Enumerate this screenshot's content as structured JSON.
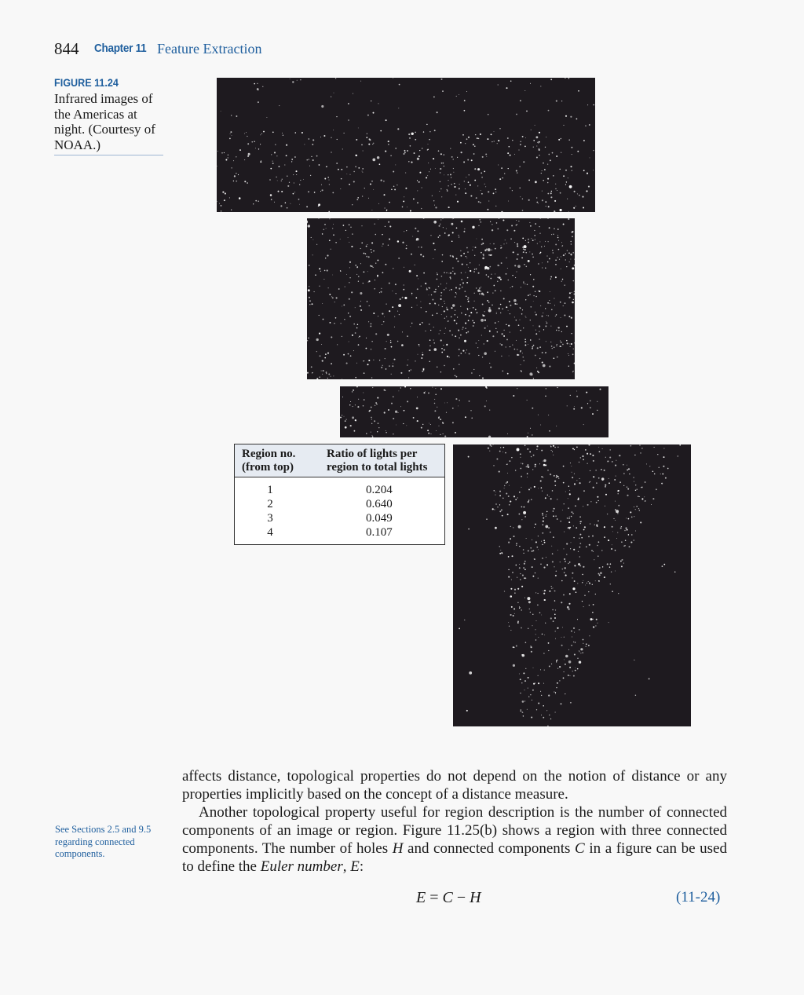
{
  "header": {
    "page_number": "844",
    "chapter_label": "Chapter 11",
    "chapter_title": "Feature Extraction"
  },
  "figure": {
    "label": "FIGURE 11.24",
    "caption": "Infrared images of the Americas at night. (Courtesy of NOAA.)"
  },
  "table": {
    "headers": {
      "region_line1": "Region no.",
      "region_line2": "(from top)",
      "ratio_line1": "Ratio of lights per",
      "ratio_line2": "region to total lights"
    },
    "rows": [
      {
        "region": "1",
        "ratio": "0.204"
      },
      {
        "region": "2",
        "ratio": "0.640"
      },
      {
        "region": "3",
        "ratio": "0.049"
      },
      {
        "region": "4",
        "ratio": "0.107"
      }
    ]
  },
  "body": {
    "para1": "affects distance, topological properties do not depend on the notion of distance or any properties implicitly based on the concept of a distance measure.",
    "para2_start": "Another topological property useful for region description is the number of connected components of an image or region. Figure 11.25(b) shows a region with three connected components. The number of holes ",
    "sym_H": "H",
    "para2_mid": " and connected components ",
    "sym_C": "C",
    "para2_mid2": " in a figure can be used to define the ",
    "euler_term": "Euler number",
    "comma": ", ",
    "sym_E": "E",
    "para2_end": ":"
  },
  "margin_note": "See Sections 2.5 and 9.5 regarding connected components.",
  "equation": {
    "lhs": "E",
    "eq": " = ",
    "c": "C",
    "minus": " − ",
    "h": "H",
    "number": "(11-24)"
  },
  "colors": {
    "accent": "#1f5f9e",
    "map_background": "#1e1a1f",
    "table_header_bg": "#e6ebf2"
  }
}
